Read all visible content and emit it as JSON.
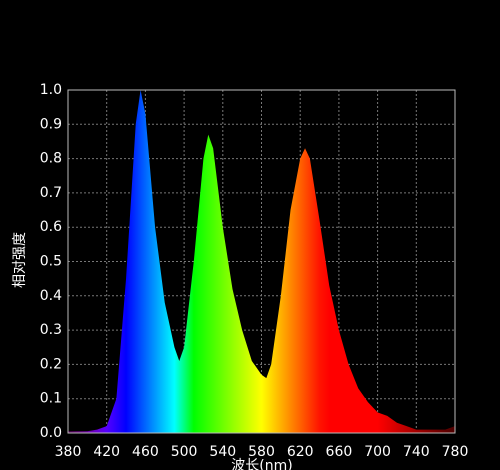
{
  "chart_data": {
    "type": "area",
    "xlabel": "波长(nm)",
    "ylabel": "相对强度",
    "x": [
      380,
      390,
      400,
      410,
      420,
      430,
      440,
      450,
      455,
      460,
      470,
      480,
      490,
      495,
      500,
      510,
      520,
      525,
      530,
      540,
      550,
      560,
      570,
      580,
      585,
      590,
      600,
      610,
      620,
      625,
      630,
      640,
      650,
      660,
      670,
      680,
      690,
      700,
      710,
      720,
      730,
      740,
      750,
      760,
      770,
      780
    ],
    "values": [
      0.005,
      0.005,
      0.005,
      0.01,
      0.02,
      0.1,
      0.45,
      0.9,
      1.0,
      0.93,
      0.6,
      0.38,
      0.25,
      0.21,
      0.25,
      0.5,
      0.8,
      0.87,
      0.83,
      0.6,
      0.42,
      0.3,
      0.21,
      0.17,
      0.16,
      0.2,
      0.4,
      0.65,
      0.8,
      0.83,
      0.8,
      0.62,
      0.43,
      0.3,
      0.2,
      0.13,
      0.09,
      0.06,
      0.05,
      0.03,
      0.02,
      0.01,
      0.01,
      0.01,
      0.01,
      0.02
    ],
    "xlim": [
      380,
      780
    ],
    "ylim": [
      0,
      1
    ],
    "xticks": [
      380,
      420,
      460,
      500,
      540,
      580,
      620,
      660,
      700,
      740,
      780
    ],
    "yticks": [
      {
        "value": 0,
        "label": "0.0"
      },
      0.1,
      0.2,
      0.3,
      0.4,
      0.5,
      0.6,
      0.7,
      0.8,
      0.9,
      {
        "value": 1,
        "label": "1.0"
      }
    ],
    "grid": true
  }
}
